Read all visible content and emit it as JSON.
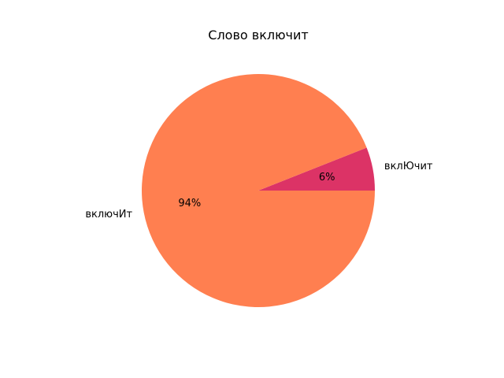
{
  "chart_data": {
    "type": "pie",
    "title": "Слово включит",
    "slices": [
      {
        "label": "вклЮчит",
        "value": 6,
        "pct_label": "6%",
        "color": "#dc3366"
      },
      {
        "label": "включИт",
        "value": 94,
        "pct_label": "94%",
        "color": "#ff7f50"
      }
    ],
    "start_angle_deg": 0,
    "direction": "counterclockwise"
  }
}
